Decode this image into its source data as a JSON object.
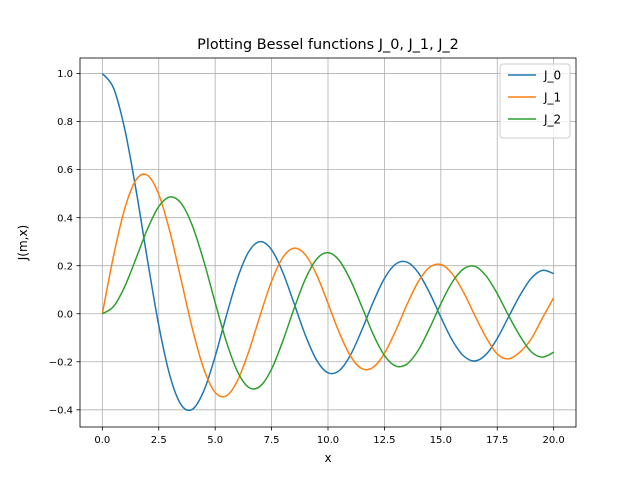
{
  "chart_data": {
    "type": "line",
    "title": "Plotting Bessel functions J_0, J_1, J_2",
    "xlabel": "x",
    "ylabel": "J(m,x)",
    "xlim": [
      -0.99,
      20.99
    ],
    "ylim": [
      -0.4715,
      1.0647
    ],
    "x_ticks": [
      0,
      2.5,
      5,
      7.5,
      10,
      12.5,
      15,
      17.5,
      20
    ],
    "x_tick_labels": [
      "0.0",
      "2.5",
      "5.0",
      "7.5",
      "10.0",
      "12.5",
      "15.0",
      "17.5",
      "20.0"
    ],
    "y_ticks": [
      -0.4,
      -0.2,
      0.0,
      0.2,
      0.4,
      0.6,
      0.8,
      1.0
    ],
    "y_tick_labels": [
      "−0.4",
      "−0.2",
      "0.0",
      "0.2",
      "0.4",
      "0.6",
      "0.8",
      "1.0"
    ],
    "grid": true,
    "legend_position": "top-right",
    "x": [
      0,
      0.5,
      1,
      1.5,
      2,
      2.5,
      3,
      3.5,
      4,
      4.5,
      5,
      5.5,
      6,
      6.5,
      7,
      7.5,
      8,
      8.5,
      9,
      9.5,
      10,
      10.5,
      11,
      11.5,
      12,
      12.5,
      13,
      13.5,
      14,
      14.5,
      15,
      15.5,
      16,
      16.5,
      17,
      17.5,
      18,
      18.5,
      19,
      19.5,
      20
    ],
    "series": [
      {
        "name": "J_0",
        "color": "#1f77b4",
        "values": [
          1.0,
          0.9385,
          0.7652,
          0.5118,
          0.2239,
          -0.0484,
          -0.2601,
          -0.3801,
          -0.3971,
          -0.3205,
          -0.1776,
          -0.0068,
          0.1506,
          0.2601,
          0.3001,
          0.2663,
          0.1717,
          0.0419,
          -0.0903,
          -0.1939,
          -0.2459,
          -0.2366,
          -0.1712,
          -0.0677,
          0.0477,
          0.1469,
          0.2069,
          0.215,
          0.1711,
          0.0875,
          -0.0142,
          -0.1092,
          -0.1749,
          -0.1967,
          -0.1699,
          -0.1029,
          -0.0134,
          0.0752,
          0.1466,
          0.1806,
          0.167
        ]
      },
      {
        "name": "J_1",
        "color": "#ff7f0e",
        "values": [
          0.0,
          0.2423,
          0.4401,
          0.5579,
          0.5767,
          0.4971,
          0.3391,
          0.1374,
          -0.066,
          -0.2311,
          -0.3276,
          -0.3414,
          -0.2767,
          -0.1538,
          -0.0047,
          0.1352,
          0.2346,
          0.2731,
          0.2453,
          0.1613,
          0.0435,
          -0.0789,
          -0.1768,
          -0.2284,
          -0.2234,
          -0.1655,
          -0.0703,
          0.038,
          0.1334,
          0.1934,
          0.2051,
          0.1672,
          0.0904,
          -0.0057,
          -0.0977,
          -0.1672,
          -0.188,
          -0.1601,
          -0.1057,
          -0.0183,
          0.0668
        ]
      },
      {
        "name": "J_2",
        "color": "#2ca02c",
        "values": [
          0.0,
          0.0306,
          0.1149,
          0.2321,
          0.3528,
          0.4461,
          0.4861,
          0.4586,
          0.3641,
          0.2178,
          0.0466,
          -0.1173,
          -0.2429,
          -0.3074,
          -0.3014,
          -0.2303,
          -0.113,
          0.0223,
          0.1448,
          0.2279,
          0.2546,
          0.2216,
          0.139,
          0.0296,
          -0.0849,
          -0.1734,
          -0.2177,
          -0.2094,
          -0.152,
          -0.0609,
          0.0416,
          0.1307,
          0.1862,
          0.1975,
          0.1584,
          0.0838,
          -0.0075,
          -0.0913,
          -0.1577,
          -0.1806,
          -0.1603
        ]
      }
    ]
  }
}
